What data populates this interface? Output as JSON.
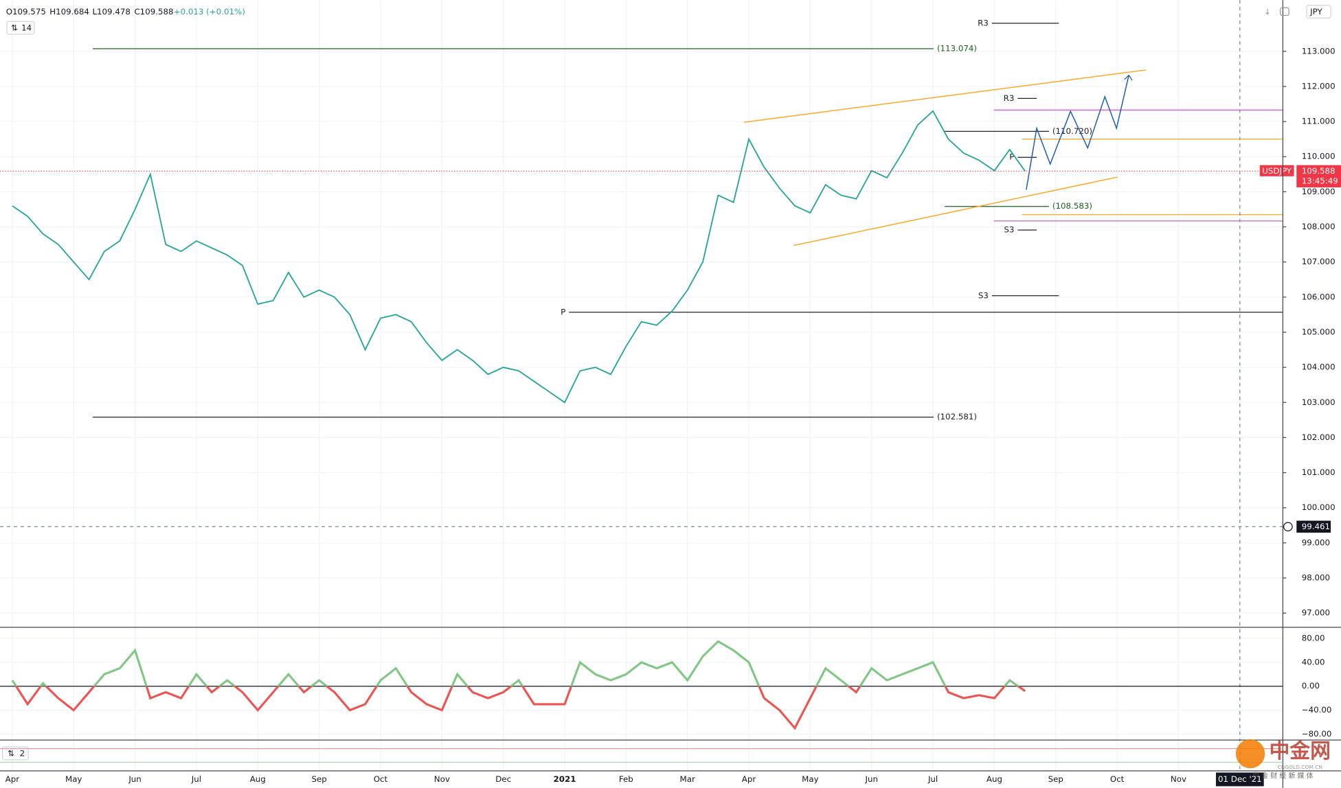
{
  "chart_data": [
    {
      "type": "line",
      "header": {
        "open": "O109.575",
        "high": "H109.684",
        "low": "L109.478",
        "close": "C109.588",
        "change": "+0.013 (+0.01%)"
      },
      "interval": "14",
      "currency": "JPY",
      "countdown": "13:45:49",
      "x": [
        0,
        0.25,
        0.5,
        0.75,
        1,
        1.25,
        1.5,
        1.75,
        2,
        2.25,
        2.5,
        2.75,
        3,
        3.25,
        3.5,
        3.75,
        4,
        4.25,
        4.5,
        4.75,
        5,
        5.25,
        5.5,
        5.75,
        6,
        6.25,
        6.5,
        6.75,
        7,
        7.25,
        7.5,
        7.75,
        8,
        8.25,
        8.5,
        8.75,
        9,
        9.25,
        9.5,
        9.75,
        10,
        10.25,
        10.5,
        10.75,
        11,
        11.25,
        11.5,
        11.75,
        12,
        12.25,
        12.5,
        12.75,
        13,
        13.25,
        13.5,
        13.75,
        14,
        14.25,
        14.5,
        14.75,
        15,
        15.25,
        15.5,
        15.75,
        16,
        16.25,
        16.5
      ],
      "series": [
        {
          "name": "USDJPY",
          "color": "#26a69a",
          "values": [
            108.6,
            108.3,
            107.8,
            107.5,
            107.0,
            106.5,
            107.3,
            107.6,
            108.5,
            109.5,
            107.5,
            107.3,
            107.6,
            107.4,
            107.2,
            106.9,
            105.8,
            105.9,
            106.7,
            106.0,
            106.2,
            106.0,
            105.5,
            104.5,
            105.4,
            105.5,
            105.3,
            104.7,
            104.2,
            104.5,
            104.2,
            103.8,
            104.0,
            103.9,
            103.6,
            103.3,
            103.0,
            103.9,
            104.0,
            103.8,
            104.6,
            105.3,
            105.2,
            105.6,
            106.2,
            107.0,
            108.9,
            108.7,
            110.5,
            109.7,
            109.1,
            108.6,
            108.4,
            109.2,
            108.9,
            108.8,
            109.6,
            109.4,
            110.1,
            110.9,
            111.3,
            110.5,
            110.1,
            109.9,
            109.6,
            110.2,
            109.588
          ]
        }
      ],
      "last_price": 109.588,
      "crosshair": {
        "x": {
          "value": 20,
          "label": "01 Dec '21"
        },
        "y": 99.461
      },
      "xlim": [
        -0.2,
        20.7
      ],
      "ylim": [
        96.62,
        114.46
      ],
      "xticks": [
        {
          "value": 0,
          "label": "Apr"
        },
        {
          "value": 1,
          "label": "May"
        },
        {
          "value": 2,
          "label": "Jun"
        },
        {
          "value": 3,
          "label": "Jul"
        },
        {
          "value": 4,
          "label": "Aug"
        },
        {
          "value": 5,
          "label": "Sep"
        },
        {
          "value": 6,
          "label": "Oct"
        },
        {
          "value": 7,
          "label": "Nov"
        },
        {
          "value": 8,
          "label": "Dec"
        },
        {
          "value": 9,
          "label": "2021"
        },
        {
          "value": 10,
          "label": "Feb"
        },
        {
          "value": 11,
          "label": "Mar"
        },
        {
          "value": 12,
          "label": "Apr"
        },
        {
          "value": 13,
          "label": "May"
        },
        {
          "value": 14,
          "label": "Jun"
        },
        {
          "value": 15,
          "label": "Jul"
        },
        {
          "value": 16,
          "label": "Aug"
        },
        {
          "value": 17,
          "label": "Sep"
        },
        {
          "value": 18,
          "label": "Oct"
        },
        {
          "value": 19,
          "label": "Nov"
        }
      ],
      "yticks": [
        {
          "value": 97,
          "label": "97.000"
        },
        {
          "value": 98,
          "label": "98.000"
        },
        {
          "value": 99,
          "label": "99.000"
        },
        {
          "value": 100,
          "label": "100.000"
        },
        {
          "value": 101,
          "label": "101.000"
        },
        {
          "value": 102,
          "label": "102.000"
        },
        {
          "value": 103,
          "label": "103.000"
        },
        {
          "value": 104,
          "label": "104.000"
        },
        {
          "value": 105,
          "label": "105.000"
        },
        {
          "value": 106,
          "label": "106.000"
        },
        {
          "value": 107,
          "label": "107.000"
        },
        {
          "value": 108,
          "label": "108.000"
        },
        {
          "value": 109,
          "label": "109.000"
        },
        {
          "value": 110,
          "label": "110.000"
        },
        {
          "value": 111,
          "label": "111.000"
        },
        {
          "value": 112,
          "label": "112.000"
        },
        {
          "value": 113,
          "label": "113.000"
        }
      ],
      "grid": true,
      "levels": [
        {
          "value": 113.074,
          "label": "(113.074)",
          "label_at": "end",
          "from": 1.31,
          "to": 15.01,
          "color": "#1b5e20"
        },
        {
          "value": 102.581,
          "label": "(102.581)",
          "label_at": "end",
          "from": 1.31,
          "to": 15.01,
          "color": "#222222"
        },
        {
          "value": 110.72,
          "label": "(110.720)",
          "label_at": "end",
          "from": 15.19,
          "to": 16.89,
          "color": "#222222"
        },
        {
          "value": 108.583,
          "label": "(108.583)",
          "label_at": "end",
          "from": 15.19,
          "to": 16.89,
          "color": "#1b5e20"
        },
        {
          "value": 105.57,
          "label": "P",
          "label_at": "start",
          "from": 9.07,
          "to": 20.7,
          "color": "#222222"
        },
        {
          "value": 113.8,
          "label": "R3",
          "label_at": "start",
          "from": 15.96,
          "to": 17.05,
          "color": "#222222"
        },
        {
          "value": 106.04,
          "label": "S3",
          "label_at": "start",
          "from": 15.96,
          "to": 17.05,
          "color": "#222222"
        },
        {
          "value": 111.66,
          "label": "R3",
          "label_at": "start",
          "from": 16.38,
          "to": 16.69,
          "color": "#222222"
        },
        {
          "value": 109.98,
          "label": "P",
          "label_at": "start",
          "from": 16.38,
          "to": 16.69,
          "color": "#222222"
        },
        {
          "value": 107.91,
          "label": "S3",
          "label_at": "start",
          "from": 16.38,
          "to": 16.69,
          "color": "#222222"
        },
        {
          "value": 111.33,
          "from": 15.99,
          "to": 20.7,
          "color": "#e040fb"
        },
        {
          "value": 108.17,
          "from": 15.99,
          "to": 20.7,
          "color": "#ba68c8"
        },
        {
          "value": 110.5,
          "from": 16.45,
          "to": 20.7,
          "color": "#ffa726"
        },
        {
          "value": 108.35,
          "from": 16.45,
          "to": 20.7,
          "color": "#ffa726"
        }
      ],
      "channel": [
        {
          "x": [
            11.92,
            18.47
          ],
          "values": [
            110.98,
            112.47
          ],
          "color": "#ffa726"
        },
        {
          "x": [
            12.73,
            18.01
          ],
          "values": [
            107.47,
            109.42
          ],
          "color": "#ffa726"
        }
      ],
      "projection": {
        "color": "#1e5bb8",
        "x": [
          16.52,
          16.69,
          16.91,
          17.24,
          17.52,
          17.8,
          17.99,
          18.19
        ],
        "values": [
          109.06,
          110.81,
          109.79,
          111.29,
          110.25,
          111.71,
          110.81,
          112.32
        ]
      }
    },
    {
      "type": "oscillator",
      "x": [
        0,
        0.25,
        0.5,
        0.75,
        1,
        1.25,
        1.5,
        1.75,
        2,
        2.25,
        2.5,
        2.75,
        3,
        3.25,
        3.5,
        3.75,
        4,
        4.25,
        4.5,
        4.75,
        5,
        5.25,
        5.5,
        5.75,
        6,
        6.25,
        6.5,
        6.75,
        7,
        7.25,
        7.5,
        7.75,
        8,
        8.25,
        8.5,
        8.75,
        9,
        9.25,
        9.5,
        9.75,
        10,
        10.25,
        10.5,
        10.75,
        11,
        11.25,
        11.5,
        11.75,
        12,
        12.25,
        12.5,
        12.75,
        13,
        13.25,
        13.5,
        13.75,
        14,
        14.25,
        14.5,
        14.75,
        15,
        15.25,
        15.5,
        15.75,
        16,
        16.25,
        16.5
      ],
      "values": [
        10,
        -30,
        5,
        -20,
        -40,
        -10,
        20,
        30,
        60,
        -20,
        -10,
        -20,
        20,
        -10,
        10,
        -10,
        -40,
        -10,
        20,
        -10,
        10,
        -10,
        -40,
        -30,
        10,
        30,
        -10,
        -30,
        -40,
        20,
        -10,
        -20,
        -10,
        10,
        -30,
        -30,
        -30,
        40,
        20,
        10,
        20,
        40,
        30,
        40,
        10,
        50,
        75,
        60,
        40,
        -20,
        -40,
        -70,
        -20,
        30,
        10,
        -10,
        30,
        10,
        20,
        30,
        40,
        -10,
        -20,
        -15,
        -20,
        10,
        -8
      ],
      "up_color": "#81c784",
      "down_color": "#ef5350",
      "ylim": [
        -88.6,
        97.1
      ],
      "yticks": [
        {
          "value": 80,
          "label": "80.00"
        },
        {
          "value": 40,
          "label": "40.00"
        },
        {
          "value": 0,
          "label": "0.00"
        },
        {
          "value": -40,
          "label": "−40.00"
        },
        {
          "value": -80,
          "label": "−80.00"
        }
      ]
    }
  ],
  "pane3": {
    "label": "2"
  },
  "watermark": {
    "brand": "中金网",
    "site": "CNGOLD.COM.CN",
    "tagline": "中 金 财 经 新 媒 体"
  }
}
